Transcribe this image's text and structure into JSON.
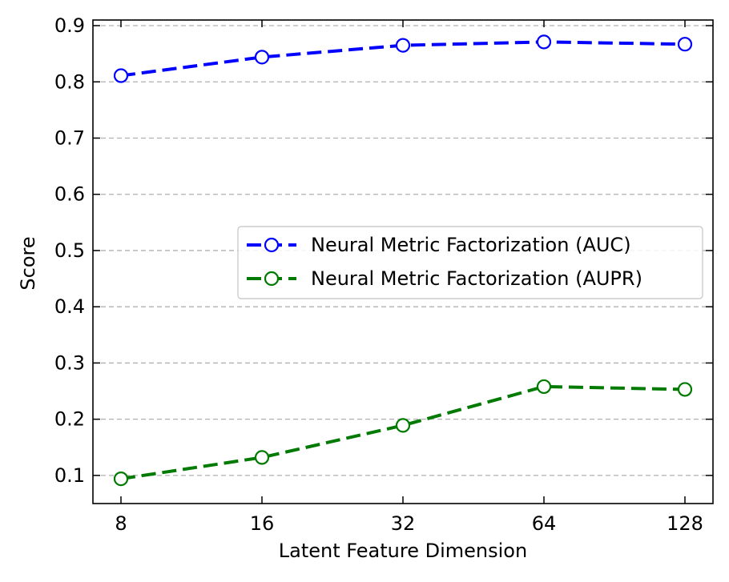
{
  "chart_data": {
    "type": "line",
    "title": "",
    "xlabel": "Latent Feature Dimension",
    "ylabel": "Score",
    "x_scale": "log2",
    "x": [
      8,
      16,
      32,
      64,
      128
    ],
    "x_tick_labels": [
      "8",
      "16",
      "32",
      "64",
      "128"
    ],
    "ylim": [
      0.05,
      0.91
    ],
    "y_ticks": [
      0.1,
      0.2,
      0.3,
      0.4,
      0.5,
      0.6,
      0.7,
      0.8,
      0.9
    ],
    "y_tick_labels": [
      "0.1",
      "0.2",
      "0.3",
      "0.4",
      "0.5",
      "0.6",
      "0.7",
      "0.8",
      "0.9"
    ],
    "grid": "horizontal dashed",
    "legend_position": "center-right",
    "series": [
      {
        "name": "Neural Metric Factorization (AUC)",
        "color": "#0000ff",
        "line_style": "dashed",
        "marker": "open-circle",
        "values": [
          0.811,
          0.844,
          0.865,
          0.871,
          0.867
        ]
      },
      {
        "name": "Neural Metric Factorization (AUPR)",
        "color": "#007a00",
        "line_style": "dashed",
        "marker": "open-circle",
        "values": [
          0.094,
          0.132,
          0.189,
          0.258,
          0.253
        ]
      }
    ]
  }
}
